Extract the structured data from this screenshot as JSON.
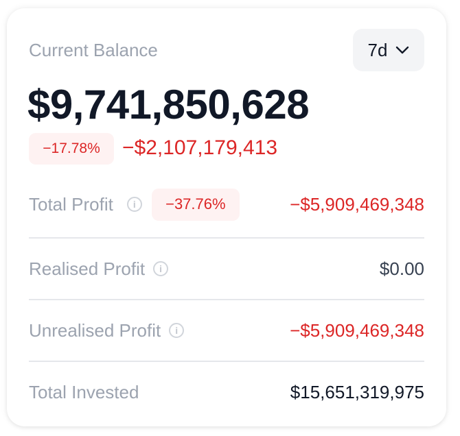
{
  "title": "Current Balance",
  "period": {
    "selected": "7d",
    "icon": "chevron-down-icon"
  },
  "balance": "$9,741,850,628",
  "change": {
    "percent": "−17.78%",
    "amount": "−$2,107,179,413"
  },
  "rows": [
    {
      "label": "Total Profit",
      "percent": "−37.76%",
      "value": "−$5,909,469,348"
    },
    {
      "label": "Realised Profit",
      "value": "$0.00"
    },
    {
      "label": "Unrealised Profit",
      "value": "−$5,909,469,348"
    },
    {
      "label": "Total Invested",
      "value": "$15,651,319,975"
    }
  ],
  "colors": {
    "negative": "#dc2626",
    "badge_bg": "#fef2f2",
    "label": "#9ca3af",
    "text": "#111827"
  }
}
